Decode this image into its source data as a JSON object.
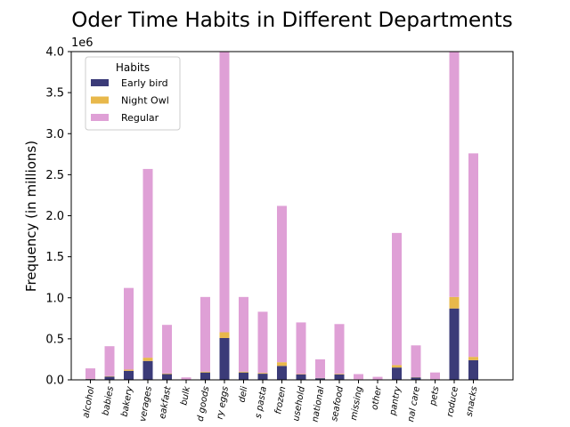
{
  "chart_data": {
    "type": "bar",
    "stacked": true,
    "title": "Oder Time Habits in Different Departments",
    "ylabel": "Frequency (in millions)",
    "xlabel": "",
    "y_multiplier_label": "1e6",
    "ylim": [
      0,
      4000000
    ],
    "yticks": [
      0,
      500000,
      1000000,
      1500000,
      2000000,
      2500000,
      3000000,
      3500000,
      4000000
    ],
    "ytick_labels": [
      "0.0",
      "0.5",
      "1.0",
      "1.5",
      "2.0",
      "2.5",
      "3.0",
      "3.5",
      "4.0"
    ],
    "grid": false,
    "legend": {
      "title": "Habits",
      "position": "upper-left"
    },
    "categories": [
      "alcohol",
      "babies",
      "bakery",
      "beverages",
      "breakfast",
      "bulk",
      "canned goods",
      "dairy eggs",
      "deli",
      "dry goods pasta",
      "frozen",
      "household",
      "international",
      "meat seafood",
      "missing",
      "other",
      "pantry",
      "personal care",
      "pets",
      "produce",
      "snacks"
    ],
    "category_labels": [
      "alcohol",
      "babies",
      "bakery",
      "verages",
      "eakfast",
      "bulk",
      "d goods",
      "ry eggs",
      "deli",
      "s pasta",
      "frozen",
      "usehold",
      "national",
      "seafood",
      "missing",
      "other",
      "pantry",
      "nal care",
      "pets",
      "roduce",
      "snacks"
    ],
    "series": [
      {
        "name": "Early bird",
        "color": "#3b3b78",
        "values": [
          10000,
          40000,
          110000,
          230000,
          70000,
          3000,
          90000,
          510000,
          90000,
          75000,
          170000,
          65000,
          20000,
          65000,
          6000,
          3000,
          150000,
          30000,
          8000,
          870000,
          240000
        ]
      },
      {
        "name": "Night Owl",
        "color": "#e8b84b",
        "values": [
          3000,
          6000,
          15000,
          40000,
          8000,
          1000,
          10000,
          70000,
          10000,
          10000,
          45000,
          5000,
          3000,
          8000,
          1000,
          500,
          30000,
          3000,
          1000,
          140000,
          40000
        ]
      },
      {
        "name": "Regular",
        "color": "#dfa0d6",
        "values": [
          127000,
          364000,
          995000,
          2300000,
          592000,
          26000,
          910000,
          3420000,
          910000,
          745000,
          1905000,
          630000,
          227000,
          607000,
          63000,
          33500,
          1610000,
          387000,
          81000,
          2990000,
          2480000
        ]
      }
    ]
  }
}
